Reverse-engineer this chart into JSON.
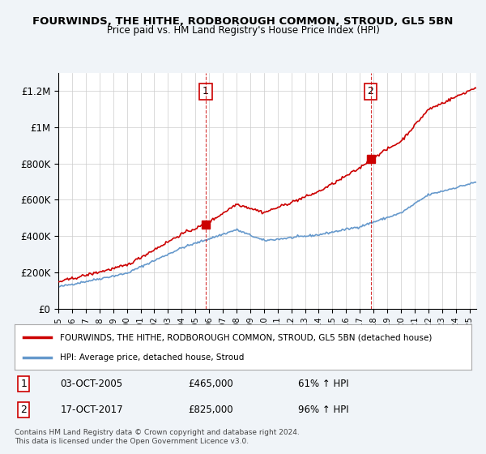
{
  "title": "FOURWINDS, THE HITHE, RODBOROUGH COMMON, STROUD, GL5 5BN",
  "subtitle": "Price paid vs. HM Land Registry's House Price Index (HPI)",
  "ylabel_ticks": [
    "£0",
    "£200K",
    "£400K",
    "£600K",
    "£800K",
    "£1M",
    "£1.2M"
  ],
  "ytick_values": [
    0,
    200000,
    400000,
    600000,
    800000,
    1000000,
    1200000
  ],
  "ylim": [
    0,
    1300000
  ],
  "x_start_year": 1995,
  "x_end_year": 2025,
  "sale1_year": 2005.75,
  "sale1_price": 465000,
  "sale1_label": "1",
  "sale1_date": "03-OCT-2005",
  "sale1_pct": "61% ↑ HPI",
  "sale2_year": 2017.79,
  "sale2_price": 825000,
  "sale2_label": "2",
  "sale2_date": "17-OCT-2017",
  "sale2_pct": "96% ↑ HPI",
  "house_line_color": "#cc0000",
  "hpi_line_color": "#6699cc",
  "sale_marker_color": "#cc0000",
  "vline_color": "#cc0000",
  "background_color": "#f0f4f8",
  "plot_bg_color": "#ffffff",
  "legend_house": "FOURWINDS, THE HITHE, RODBOROUGH COMMON, STROUD, GL5 5BN (detached house)",
  "legend_hpi": "HPI: Average price, detached house, Stroud",
  "footer": "Contains HM Land Registry data © Crown copyright and database right 2024.\nThis data is licensed under the Open Government Licence v3.0."
}
